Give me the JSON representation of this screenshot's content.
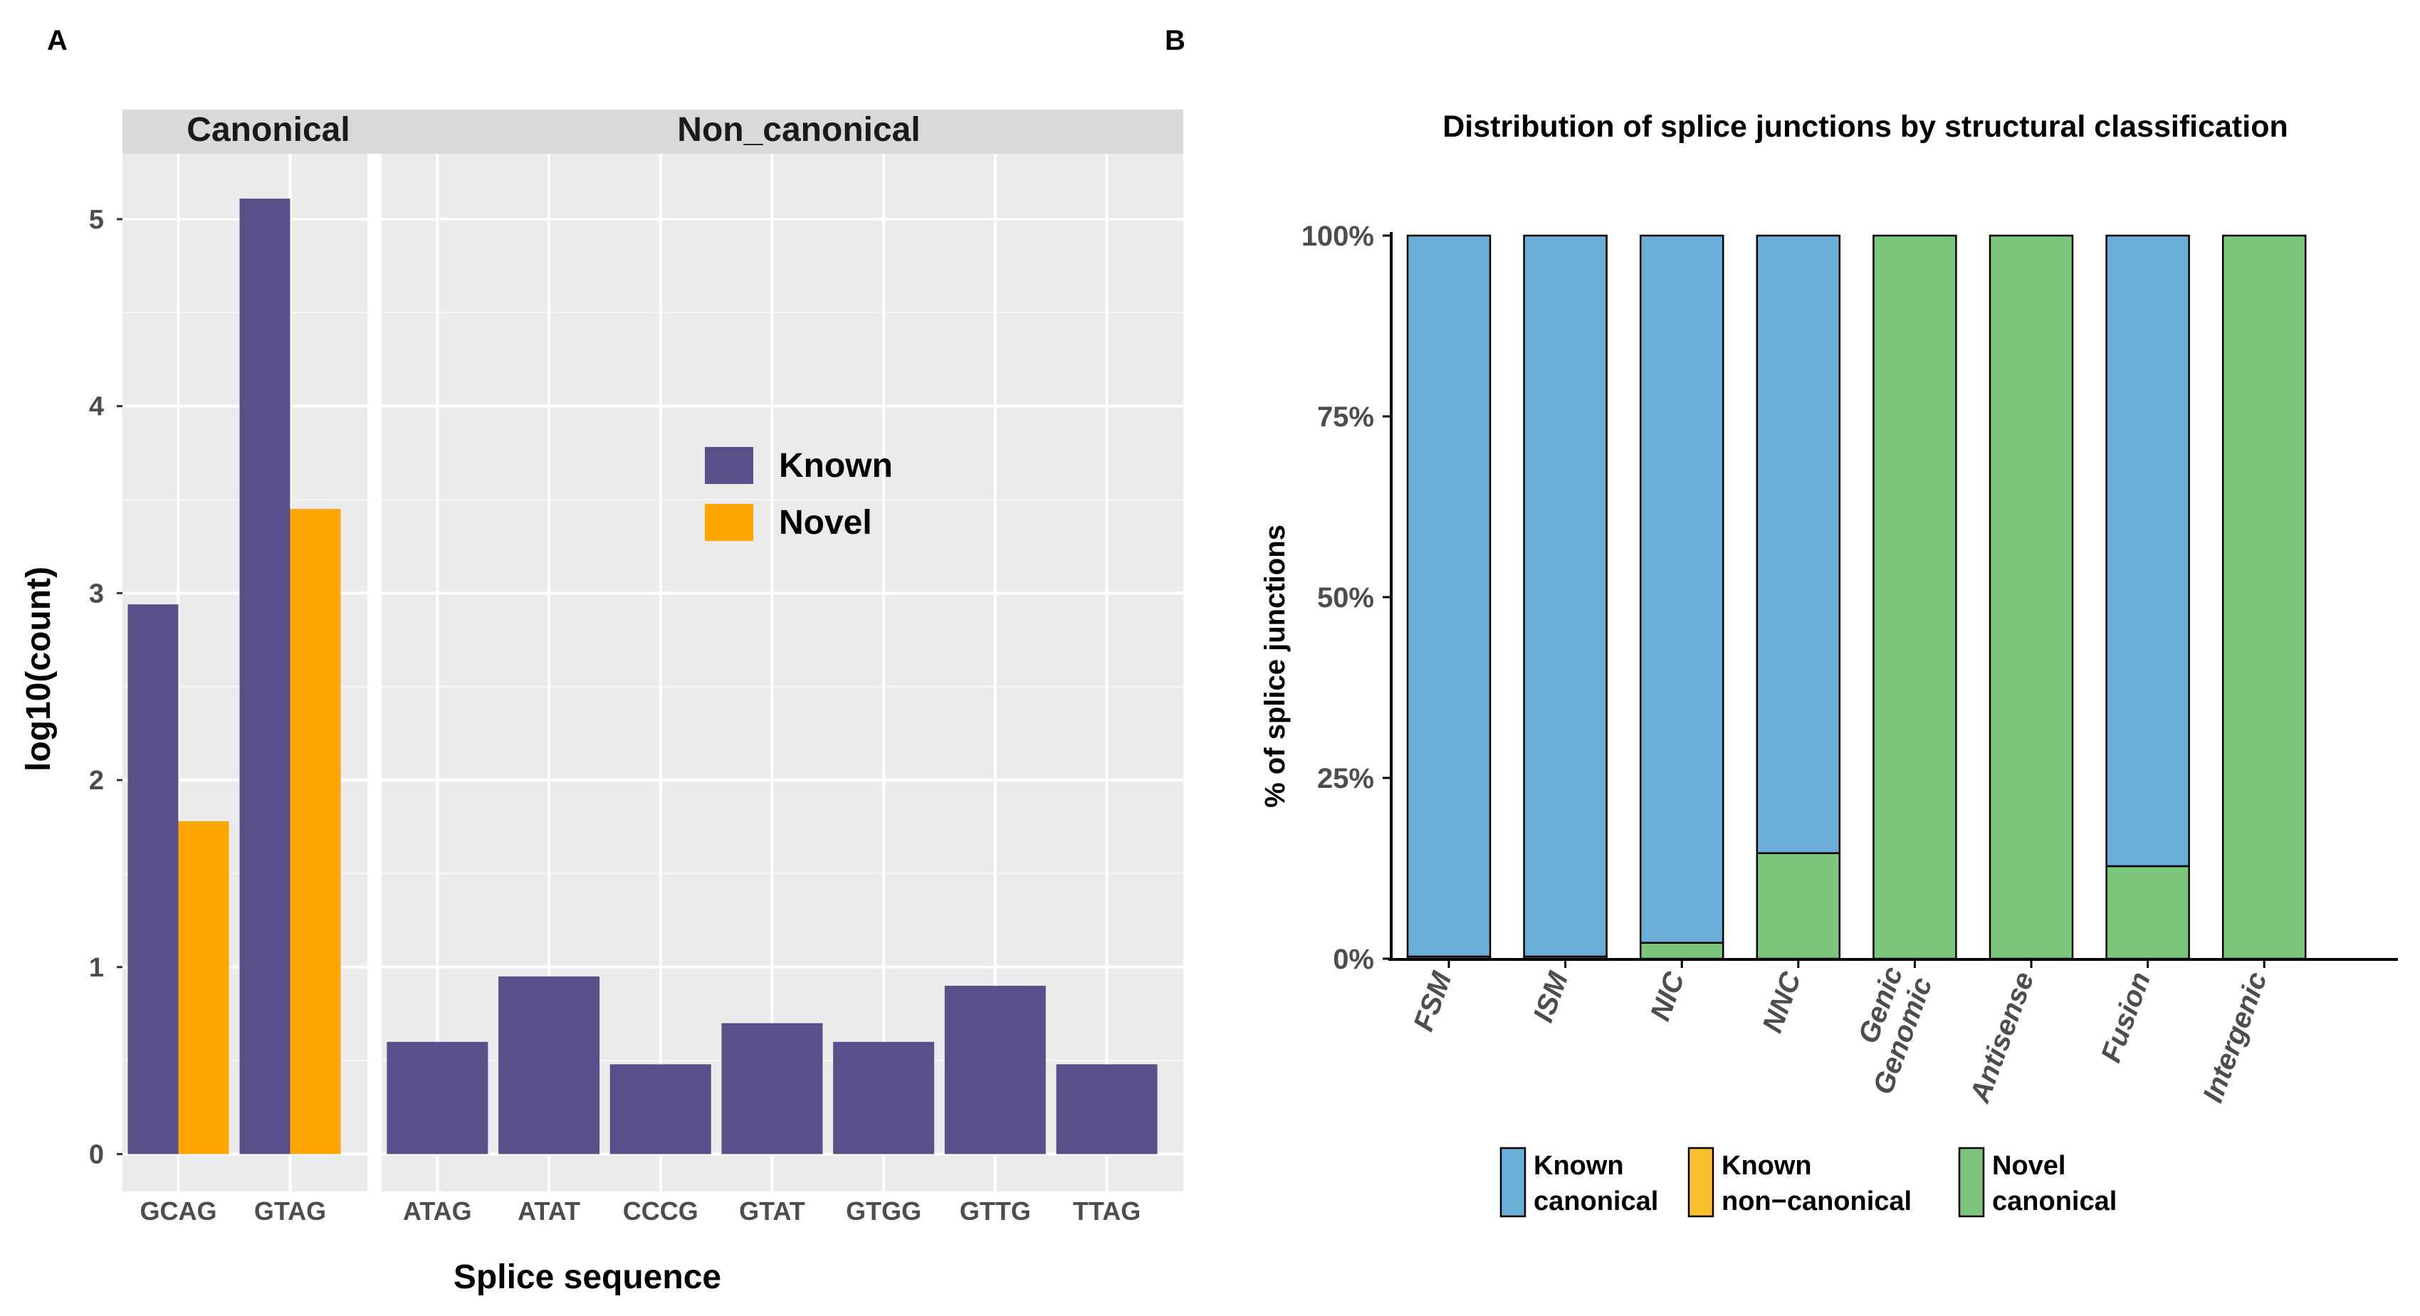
{
  "panel_labels": {
    "a": "A",
    "b": "B"
  },
  "chart_data": [
    {
      "type": "bar",
      "title": "",
      "facets": [
        {
          "name": "Canonical",
          "categories": [
            "GCAG",
            "GTAG"
          ]
        },
        {
          "name": "Non_canonical",
          "categories": [
            "ATAG",
            "ATAT",
            "CCCG",
            "GTAT",
            "GTGG",
            "GTTG",
            "TTAG"
          ]
        }
      ],
      "series": [
        {
          "name": "Known",
          "color": "#5a5089",
          "values": {
            "GCAG": 2.94,
            "GTAG": 5.11,
            "ATAG": 0.6,
            "ATAT": 0.95,
            "CCCG": 0.48,
            "GTAT": 0.7,
            "GTGG": 0.6,
            "GTTG": 0.9,
            "TTAG": 0.48
          }
        },
        {
          "name": "Novel",
          "color": "#ffa500",
          "values": {
            "GCAG": 1.78,
            "GTAG": 3.45
          }
        }
      ],
      "xlabel": "Splice sequence",
      "ylabel": "log10(count)",
      "ylim": [
        -0.2,
        5.35
      ],
      "yticks": [
        0,
        1,
        2,
        3,
        4,
        5
      ],
      "legend": [
        "Known",
        "Novel"
      ],
      "grid": true
    },
    {
      "type": "bar",
      "stacked": true,
      "title": "Distribution of splice junctions by structural classification",
      "categories": [
        "FSM",
        "ISM",
        "NIC",
        "NNC",
        "Genic Genomic",
        "Antisense",
        "Fusion",
        "Intergenic"
      ],
      "series": [
        {
          "name": "Novel canonical",
          "color": "#7bc67b",
          "values": [
            0.3,
            0.3,
            2.2,
            14.6,
            100,
            100,
            12.8,
            100
          ]
        },
        {
          "name": "Known non-canonical",
          "color": "#fbc02d",
          "values": [
            0,
            0,
            0,
            0,
            0,
            0,
            0,
            0
          ]
        },
        {
          "name": "Known canonical",
          "color": "#6aadd7",
          "values": [
            99.7,
            99.7,
            97.8,
            85.4,
            0,
            0,
            87.2,
            0
          ]
        }
      ],
      "ylabel": "% of splice junctions",
      "ylim": [
        0,
        100
      ],
      "yticks": [
        "0%",
        "25%",
        "50%",
        "75%",
        "100%"
      ],
      "legend": [
        {
          "line1": "Known",
          "line2": "canonical",
          "color": "#6aadd7"
        },
        {
          "line1": "Known",
          "line2": "non−canonical",
          "color": "#fbc02d"
        },
        {
          "line1": "Novel",
          "line2": "canonical",
          "color": "#7bc67b"
        }
      ]
    }
  ]
}
